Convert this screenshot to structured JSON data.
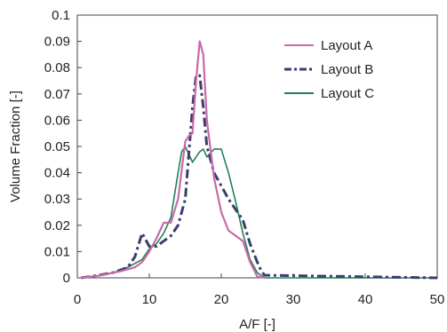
{
  "chart_data": {
    "type": "line",
    "xlabel": "A/F [-]",
    "ylabel": "Volume Fraction [-]",
    "xlim": [
      0,
      50
    ],
    "ylim": [
      0,
      0.1
    ],
    "xticks": [
      "0",
      "10",
      "20",
      "30",
      "40",
      "50"
    ],
    "yticks": [
      "0",
      "0.01",
      "0.02",
      "0.03",
      "0.04",
      "0.05",
      "0.06",
      "0.07",
      "0.08",
      "0.09",
      "0.1"
    ],
    "grid": false,
    "legend": "top-right",
    "series": [
      {
        "name": "Layout A",
        "color": "#c86aa8",
        "dash": "solid",
        "points": [
          [
            0.5,
            0
          ],
          [
            3,
            0.0008
          ],
          [
            6,
            0.0025
          ],
          [
            8,
            0.004
          ],
          [
            9,
            0.006
          ],
          [
            10,
            0.01
          ],
          [
            11,
            0.015
          ],
          [
            12,
            0.021
          ],
          [
            13,
            0.021
          ],
          [
            14,
            0.03
          ],
          [
            15,
            0.052
          ],
          [
            15.5,
            0.054
          ],
          [
            16,
            0.055
          ],
          [
            16.5,
            0.075
          ],
          [
            17,
            0.09
          ],
          [
            17.5,
            0.085
          ],
          [
            18,
            0.06
          ],
          [
            19,
            0.038
          ],
          [
            20,
            0.025
          ],
          [
            21,
            0.018
          ],
          [
            22,
            0.016
          ],
          [
            23,
            0.014
          ],
          [
            24,
            0.006
          ],
          [
            25,
            0.0005
          ],
          [
            26,
            0
          ]
        ]
      },
      {
        "name": "Layout B",
        "color": "#3b3d6e",
        "dash": "dashdot",
        "points": [
          [
            0.5,
            0
          ],
          [
            3,
            0.001
          ],
          [
            5,
            0.002
          ],
          [
            7,
            0.004
          ],
          [
            8,
            0.008
          ],
          [
            9,
            0.017
          ],
          [
            10,
            0.012
          ],
          [
            11,
            0.012
          ],
          [
            12,
            0.014
          ],
          [
            13,
            0.016
          ],
          [
            14,
            0.02
          ],
          [
            15,
            0.03
          ],
          [
            16,
            0.065
          ],
          [
            16.5,
            0.077
          ],
          [
            17,
            0.077
          ],
          [
            17.5,
            0.065
          ],
          [
            18,
            0.05
          ],
          [
            19,
            0.04
          ],
          [
            20,
            0.035
          ],
          [
            21,
            0.03
          ],
          [
            22,
            0.026
          ],
          [
            23,
            0.022
          ],
          [
            24,
            0.013
          ],
          [
            25,
            0.006
          ],
          [
            25.5,
            0.003
          ],
          [
            26,
            0.001
          ],
          [
            50,
            0
          ]
        ]
      },
      {
        "name": "Layout C",
        "color": "#208058",
        "dash": "solid",
        "points": [
          [
            0.5,
            0
          ],
          [
            3,
            0.0008
          ],
          [
            5,
            0.002
          ],
          [
            7,
            0.004
          ],
          [
            9,
            0.007
          ],
          [
            10,
            0.011
          ],
          [
            11,
            0.013
          ],
          [
            12,
            0.017
          ],
          [
            13,
            0.023
          ],
          [
            14,
            0.04
          ],
          [
            14.5,
            0.048
          ],
          [
            15,
            0.05
          ],
          [
            15.5,
            0.047
          ],
          [
            16,
            0.044
          ],
          [
            17,
            0.048
          ],
          [
            17.5,
            0.049
          ],
          [
            18,
            0.046
          ],
          [
            19,
            0.049
          ],
          [
            20,
            0.049
          ],
          [
            21,
            0.04
          ],
          [
            22,
            0.029
          ],
          [
            23,
            0.017
          ],
          [
            24,
            0.007
          ],
          [
            25,
            0.002
          ],
          [
            26,
            0
          ],
          [
            50,
            0
          ]
        ]
      }
    ]
  }
}
